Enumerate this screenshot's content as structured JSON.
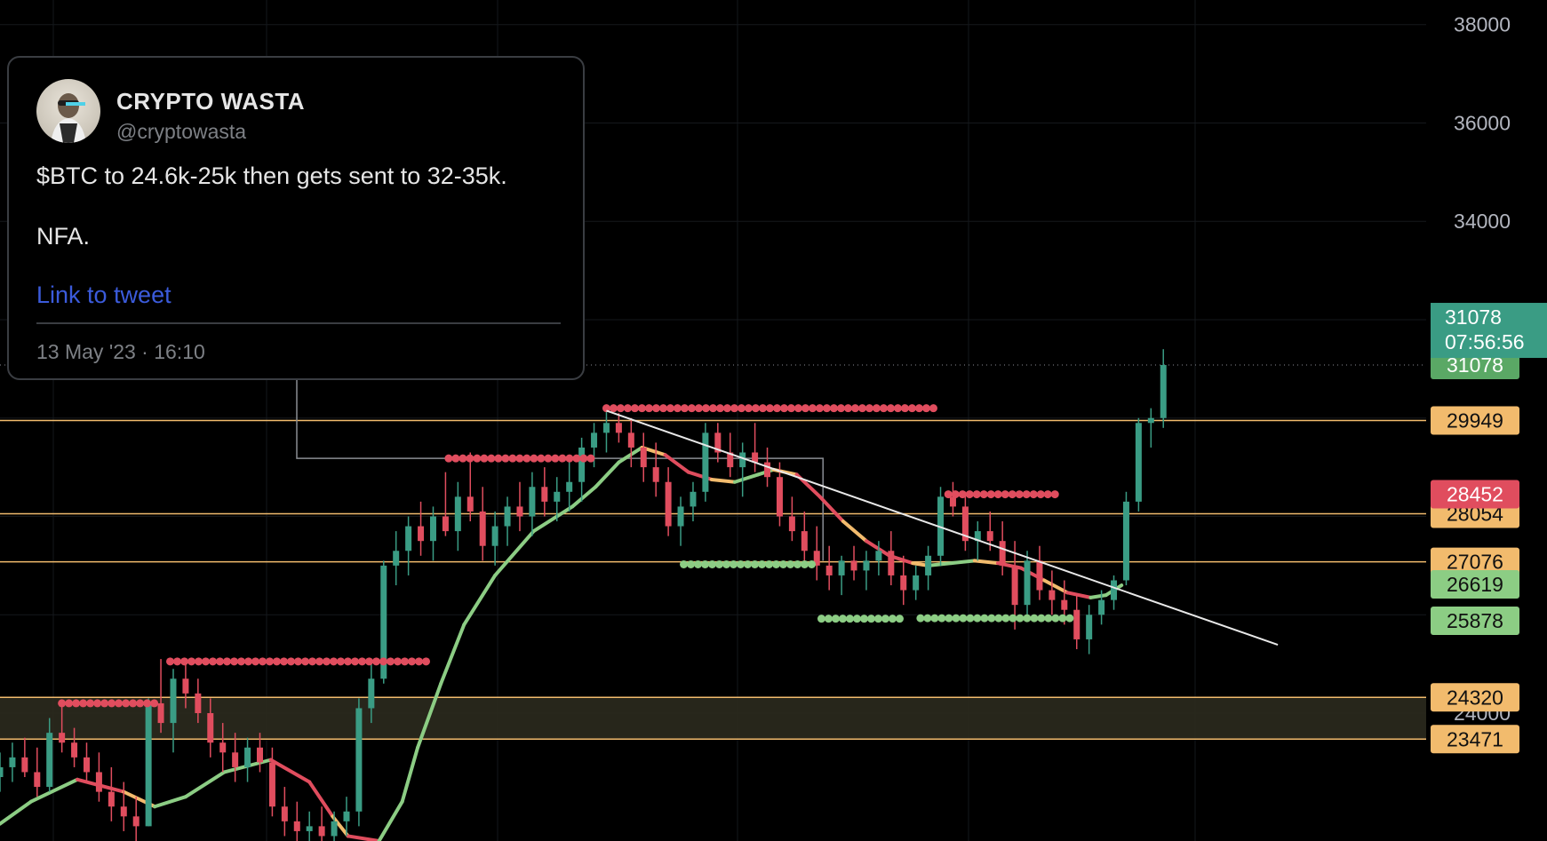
{
  "chart_data": {
    "type": "candlestick",
    "symbol": "$BTC",
    "y_axis": {
      "ticks": [
        24000,
        34000,
        36000,
        38000
      ],
      "range": [
        21400,
        38500
      ]
    },
    "current_price": {
      "value": "31078",
      "countdown": "07:56:56",
      "color": "#3a9c84"
    },
    "price_line_label": {
      "value": "31078",
      "color": "#5aa865"
    },
    "level_lines": [
      {
        "value": 29949,
        "label": "29949",
        "color": "#f2bb6d"
      },
      {
        "value": 28054,
        "label": "28054",
        "color": "#f2bb6d"
      },
      {
        "value": 27076,
        "label": "27076",
        "color": "#f2bb6d"
      },
      {
        "value": 24320,
        "label": "24320",
        "color": "#f2bb6d"
      },
      {
        "value": 23471,
        "label": "23471",
        "color": "#f2bb6d"
      }
    ],
    "level_badges": [
      {
        "value": 28452,
        "label": "28452",
        "color": "#e04d5e"
      },
      {
        "value": 26619,
        "label": "26619",
        "color": "#8ccd84"
      },
      {
        "value": 25878,
        "label": "25878",
        "color": "#8ccd84"
      }
    ],
    "support_zone": {
      "from": 23471,
      "to": 24320
    },
    "resistance_dots": [
      {
        "x_start": 0.04,
        "x_end": 0.1,
        "value": 24200
      },
      {
        "x_start": 0.11,
        "x_end": 0.28,
        "value": 25050
      },
      {
        "x_start": 0.29,
        "x_end": 0.385,
        "value": 29180
      },
      {
        "x_start": 0.392,
        "x_end": 0.607,
        "value": 30200
      },
      {
        "x_start": 0.613,
        "x_end": 0.686,
        "value": 28450
      }
    ],
    "support_dots": [
      {
        "x_start": 0.442,
        "x_end": 0.525,
        "value": 27025
      },
      {
        "x_start": 0.531,
        "x_end": 0.586,
        "value": 25920
      },
      {
        "x_start": 0.595,
        "x_end": 0.695,
        "value": 25930
      }
    ],
    "trendline": {
      "from": [
        0.392,
        30150
      ],
      "to": [
        0.826,
        25390
      ]
    },
    "moving_average": [
      [
        0.0,
        21750
      ],
      [
        0.02,
        22200
      ],
      [
        0.05,
        22650
      ],
      [
        0.08,
        22400
      ],
      [
        0.1,
        22100
      ],
      [
        0.12,
        22300
      ],
      [
        0.145,
        22800
      ],
      [
        0.175,
        23050
      ],
      [
        0.2,
        22600
      ],
      [
        0.215,
        21900
      ],
      [
        0.225,
        21500
      ],
      [
        0.245,
        21400
      ],
      [
        0.26,
        22200
      ],
      [
        0.27,
        23300
      ],
      [
        0.285,
        24600
      ],
      [
        0.3,
        25800
      ],
      [
        0.32,
        26800
      ],
      [
        0.345,
        27700
      ],
      [
        0.37,
        28200
      ],
      [
        0.385,
        28600
      ],
      [
        0.4,
        29100
      ],
      [
        0.415,
        29400
      ],
      [
        0.43,
        29250
      ],
      [
        0.445,
        28900
      ],
      [
        0.46,
        28750
      ],
      [
        0.475,
        28700
      ],
      [
        0.49,
        28850
      ],
      [
        0.5,
        28950
      ],
      [
        0.515,
        28850
      ],
      [
        0.53,
        28400
      ],
      [
        0.545,
        27900
      ],
      [
        0.56,
        27500
      ],
      [
        0.575,
        27200
      ],
      [
        0.59,
        27050
      ],
      [
        0.6,
        27000
      ],
      [
        0.615,
        27050
      ],
      [
        0.63,
        27100
      ],
      [
        0.645,
        27050
      ],
      [
        0.66,
        26950
      ],
      [
        0.675,
        26700
      ],
      [
        0.69,
        26450
      ],
      [
        0.705,
        26350
      ],
      [
        0.715,
        26400
      ],
      [
        0.725,
        26600
      ]
    ],
    "ohlc": [
      [
        0.0,
        22700,
        23200,
        22400,
        22900
      ],
      [
        0.008,
        22900,
        23400,
        22600,
        23100
      ],
      [
        0.016,
        23100,
        23500,
        22700,
        22800
      ],
      [
        0.024,
        22800,
        23300,
        22300,
        22500
      ],
      [
        0.032,
        22500,
        23900,
        22400,
        23600
      ],
      [
        0.04,
        23600,
        24200,
        23200,
        23400
      ],
      [
        0.048,
        23400,
        23700,
        22900,
        23100
      ],
      [
        0.056,
        23100,
        23400,
        22600,
        22800
      ],
      [
        0.064,
        22800,
        23200,
        22200,
        22400
      ],
      [
        0.072,
        22400,
        22900,
        21800,
        22100
      ],
      [
        0.08,
        22100,
        22600,
        21600,
        21900
      ],
      [
        0.088,
        21900,
        22300,
        21400,
        21700
      ],
      [
        0.096,
        21700,
        24300,
        21700,
        24200
      ],
      [
        0.104,
        24200,
        25100,
        23600,
        23800
      ],
      [
        0.112,
        23800,
        24900,
        23200,
        24700
      ],
      [
        0.12,
        24700,
        25100,
        24100,
        24400
      ],
      [
        0.128,
        24400,
        24700,
        23800,
        24000
      ],
      [
        0.136,
        24000,
        24300,
        23100,
        23400
      ],
      [
        0.144,
        23400,
        23800,
        22800,
        23200
      ],
      [
        0.152,
        23200,
        23600,
        22600,
        22900
      ],
      [
        0.16,
        22900,
        23500,
        22600,
        23300
      ],
      [
        0.168,
        23300,
        23600,
        22800,
        23000
      ],
      [
        0.176,
        23000,
        23300,
        21900,
        22100
      ],
      [
        0.184,
        22100,
        22500,
        21500,
        21800
      ],
      [
        0.192,
        21800,
        22200,
        21400,
        21600
      ],
      [
        0.2,
        21600,
        22000,
        21400,
        21700
      ],
      [
        0.208,
        21700,
        22100,
        21400,
        21500
      ],
      [
        0.216,
        21500,
        22000,
        21400,
        21800
      ],
      [
        0.224,
        21800,
        22300,
        21500,
        22000
      ],
      [
        0.232,
        22000,
        24300,
        21700,
        24100
      ],
      [
        0.24,
        24100,
        25100,
        23800,
        24700
      ],
      [
        0.248,
        24700,
        27100,
        24600,
        27000
      ],
      [
        0.256,
        27000,
        27700,
        26600,
        27300
      ],
      [
        0.264,
        27300,
        28000,
        26800,
        27800
      ],
      [
        0.272,
        27800,
        28300,
        27200,
        27500
      ],
      [
        0.28,
        27500,
        28200,
        27100,
        28000
      ],
      [
        0.288,
        28000,
        28900,
        27600,
        27700
      ],
      [
        0.296,
        27700,
        28700,
        27300,
        28400
      ],
      [
        0.304,
        28400,
        29300,
        27900,
        28100
      ],
      [
        0.312,
        28100,
        28600,
        27100,
        27400
      ],
      [
        0.32,
        27400,
        28100,
        27000,
        27800
      ],
      [
        0.328,
        27800,
        28400,
        27400,
        28200
      ],
      [
        0.336,
        28200,
        28700,
        27700,
        28000
      ],
      [
        0.344,
        28000,
        28900,
        27600,
        28600
      ],
      [
        0.352,
        28600,
        29000,
        28000,
        28300
      ],
      [
        0.36,
        28300,
        28800,
        27900,
        28500
      ],
      [
        0.368,
        28500,
        29200,
        28100,
        28700
      ],
      [
        0.376,
        28700,
        29600,
        28300,
        29400
      ],
      [
        0.384,
        29400,
        29900,
        29000,
        29700
      ],
      [
        0.392,
        29700,
        30200,
        29300,
        29900
      ],
      [
        0.4,
        29900,
        30100,
        29500,
        29700
      ],
      [
        0.408,
        29700,
        30000,
        29000,
        29400
      ],
      [
        0.416,
        29400,
        29700,
        28700,
        29000
      ],
      [
        0.424,
        29000,
        29500,
        28400,
        28700
      ],
      [
        0.432,
        28700,
        29000,
        27600,
        27800
      ],
      [
        0.44,
        27800,
        28400,
        27400,
        28200
      ],
      [
        0.448,
        28200,
        28700,
        27900,
        28500
      ],
      [
        0.456,
        28500,
        29900,
        28300,
        29700
      ],
      [
        0.464,
        29700,
        29900,
        29100,
        29300
      ],
      [
        0.472,
        29300,
        29700,
        28800,
        29000
      ],
      [
        0.48,
        29000,
        29500,
        28400,
        29300
      ],
      [
        0.488,
        29300,
        29900,
        28900,
        29100
      ],
      [
        0.496,
        29100,
        29400,
        28600,
        28800
      ],
      [
        0.504,
        28800,
        29100,
        27800,
        28000
      ],
      [
        0.512,
        28000,
        28400,
        27500,
        27700
      ],
      [
        0.52,
        27700,
        28100,
        27000,
        27300
      ],
      [
        0.528,
        27300,
        27800,
        26700,
        27000
      ],
      [
        0.536,
        27000,
        27400,
        26500,
        26800
      ],
      [
        0.544,
        26800,
        27200,
        26400,
        27100
      ],
      [
        0.552,
        27100,
        27400,
        26700,
        26900
      ],
      [
        0.56,
        26900,
        27300,
        26500,
        27100
      ],
      [
        0.568,
        27100,
        27500,
        26800,
        27300
      ],
      [
        0.576,
        27300,
        27700,
        26600,
        26800
      ],
      [
        0.584,
        26800,
        27200,
        26200,
        26500
      ],
      [
        0.592,
        26500,
        27000,
        26300,
        26800
      ],
      [
        0.6,
        26800,
        27400,
        26500,
        27200
      ],
      [
        0.608,
        27200,
        28600,
        27000,
        28400
      ],
      [
        0.616,
        28400,
        28700,
        28000,
        28200
      ],
      [
        0.624,
        28200,
        28500,
        27300,
        27500
      ],
      [
        0.632,
        27500,
        27900,
        27100,
        27700
      ],
      [
        0.64,
        27700,
        28100,
        27300,
        27500
      ],
      [
        0.648,
        27500,
        27900,
        26800,
        27000
      ],
      [
        0.656,
        27000,
        27500,
        25700,
        26200
      ],
      [
        0.664,
        26200,
        27300,
        26000,
        27100
      ],
      [
        0.672,
        27100,
        27400,
        26300,
        26500
      ],
      [
        0.68,
        26500,
        26900,
        26000,
        26300
      ],
      [
        0.688,
        26300,
        26700,
        25800,
        26100
      ],
      [
        0.696,
        26100,
        26400,
        25300,
        25500
      ],
      [
        0.704,
        25500,
        26200,
        25200,
        26000
      ],
      [
        0.712,
        26000,
        26500,
        25800,
        26300
      ],
      [
        0.72,
        26300,
        26800,
        26100,
        26700
      ],
      [
        0.728,
        26700,
        28500,
        26600,
        28300
      ],
      [
        0.736,
        28300,
        30000,
        28100,
        29900
      ],
      [
        0.744,
        29900,
        30200,
        29400,
        30000
      ],
      [
        0.752,
        30000,
        31400,
        29800,
        31078
      ]
    ]
  },
  "tweet": {
    "author_name": "CRYPTO WASTA",
    "author_handle": "@cryptowasta",
    "text_line1": "$BTC to 24.6k-25k then gets sent to 32-35k.",
    "text_line2": "NFA.",
    "link_label": "Link to tweet",
    "date": "13 May '23 · 16:10"
  },
  "colors": {
    "up": "#3a9c84",
    "down": "#e04d5e",
    "ma_green": "#8ccd84",
    "ma_orange": "#f2bb6d",
    "grid": "#15181c",
    "axis_text": "#b2b5be",
    "level_line": "#f2bb6d",
    "zone": "#2b2a1e"
  }
}
